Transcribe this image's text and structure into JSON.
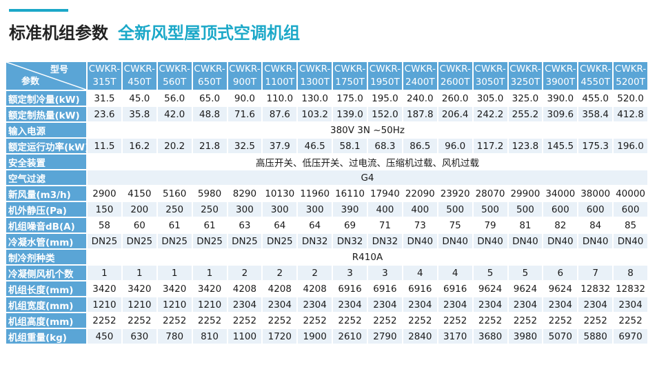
{
  "header": {
    "title_main": "标准机组参数",
    "title_sub": "全新风型屋顶式空调机组"
  },
  "table": {
    "corner_top": "型号",
    "corner_bottom": "参数",
    "models": [
      {
        "l1": "CWKR-",
        "l2": "315T"
      },
      {
        "l1": "CWKR-",
        "l2": "450T"
      },
      {
        "l1": "CWKR-",
        "l2": "560T"
      },
      {
        "l1": "CWKR-",
        "l2": "650T"
      },
      {
        "l1": "CWKR-",
        "l2": "900T"
      },
      {
        "l1": "CWKR-",
        "l2": "1100T"
      },
      {
        "l1": "CWKR-",
        "l2": "1300T"
      },
      {
        "l1": "CWKR-",
        "l2": "1750T"
      },
      {
        "l1": "CWKR-",
        "l2": "1950T"
      },
      {
        "l1": "CWKR-",
        "l2": "2400T"
      },
      {
        "l1": "CWKR-",
        "l2": "2600T"
      },
      {
        "l1": "CWKR-",
        "l2": "3050T"
      },
      {
        "l1": "CWKR-",
        "l2": "3250T"
      },
      {
        "l1": "CWKR-",
        "l2": "3900T"
      },
      {
        "l1": "CWKR-",
        "l2": "4550T"
      },
      {
        "l1": "CWKR-",
        "l2": "5200T"
      }
    ],
    "rows": [
      {
        "label": "额定制冷量(kW)",
        "values": [
          "31.5",
          "45.0",
          "56.0",
          "65.0",
          "90.0",
          "110.0",
          "130.0",
          "175.0",
          "195.0",
          "240.0",
          "260.0",
          "305.0",
          "325.0",
          "390.0",
          "455.0",
          "520.0"
        ]
      },
      {
        "label": "额定制热量(kW)",
        "values": [
          "23.6",
          "35.8",
          "42.0",
          "48.8",
          "71.6",
          "87.6",
          "103.2",
          "139.0",
          "152.0",
          "187.8",
          "206.4",
          "242.2",
          "255.2",
          "309.6",
          "358.4",
          "412.8"
        ]
      },
      {
        "label": "输入电源",
        "merged": "380V 3N ~50Hz"
      },
      {
        "label": "额定运行功率(kW)",
        "values": [
          "11.5",
          "16.2",
          "20.2",
          "21.8",
          "32.5",
          "37.9",
          "46.5",
          "58.1",
          "68.3",
          "86.5",
          "96.0",
          "117.2",
          "123.8",
          "145.5",
          "175.3",
          "196.0"
        ]
      },
      {
        "label": "安全装置",
        "merged": "高压开关、低压开关、过电流、压缩机过载、风机过载"
      },
      {
        "label": "空气过滤",
        "merged": "G4"
      },
      {
        "label": "新风量(m3/h)",
        "values": [
          "2900",
          "4150",
          "5160",
          "5980",
          "8290",
          "10130",
          "11960",
          "16110",
          "17940",
          "22090",
          "23920",
          "28070",
          "29900",
          "34000",
          "38000",
          "40000"
        ]
      },
      {
        "label": "机外静压(Pa)",
        "values": [
          "150",
          "200",
          "250",
          "250",
          "300",
          "300",
          "300",
          "390",
          "400",
          "400",
          "500",
          "500",
          "500",
          "600",
          "600",
          "600"
        ]
      },
      {
        "label": "机组噪音dB(A)",
        "values": [
          "58",
          "60",
          "61",
          "61",
          "63",
          "64",
          "64",
          "69",
          "71",
          "73",
          "75",
          "79",
          "81",
          "82",
          "84",
          "85"
        ]
      },
      {
        "label": "冷凝水管(mm)",
        "values": [
          "DN25",
          "DN25",
          "DN25",
          "DN25",
          "DN25",
          "DN25",
          "DN32",
          "DN32",
          "DN32",
          "DN40",
          "DN40",
          "DN40",
          "DN40",
          "DN40",
          "DN40",
          "DN40"
        ]
      },
      {
        "label": "制冷剂种类",
        "merged": "R410A"
      },
      {
        "label": "冷凝侧风机个数",
        "values": [
          "1",
          "1",
          "1",
          "1",
          "2",
          "2",
          "2",
          "3",
          "3",
          "4",
          "4",
          "5",
          "5",
          "6",
          "7",
          "8"
        ]
      },
      {
        "label": "机组长度(mm)",
        "values": [
          "3420",
          "3420",
          "3420",
          "3420",
          "4208",
          "4208",
          "4208",
          "6916",
          "6916",
          "6916",
          "6916",
          "9624",
          "9624",
          "9624",
          "12832",
          "12832"
        ]
      },
      {
        "label": "机组宽度(mm)",
        "values": [
          "1210",
          "1210",
          "1210",
          "1210",
          "2304",
          "2304",
          "2304",
          "2304",
          "2304",
          "2304",
          "2304",
          "2304",
          "2304",
          "2304",
          "2304",
          "2304"
        ]
      },
      {
        "label": "机组高度(mm)",
        "values": [
          "2252",
          "2252",
          "2252",
          "2252",
          "2252",
          "2252",
          "2252",
          "2252",
          "2252",
          "2252",
          "2252",
          "2252",
          "2252",
          "2252",
          "2252",
          "2252"
        ]
      },
      {
        "label": "机组重量(kg)",
        "values": [
          "450",
          "630",
          "780",
          "810",
          "1100",
          "1720",
          "1900",
          "2610",
          "2790",
          "2840",
          "3170",
          "3680",
          "3980",
          "5070",
          "5880",
          "6970"
        ]
      }
    ]
  },
  "colors": {
    "accent": "#1ba8c8",
    "header_bg": "#5aa5d6",
    "stripe_bg": "#e9f1f8"
  }
}
